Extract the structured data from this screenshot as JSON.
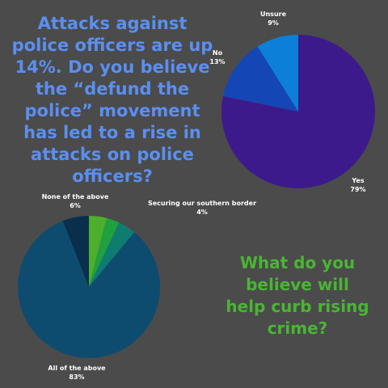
{
  "chart_data": [
    {
      "type": "pie",
      "title": "Attacks against police officers are up 14%. Do you believe the “defund the police” movement has led to a rise in attacks on police officers?",
      "slices": [
        {
          "label": "Yes",
          "value": 79,
          "pct_text": "79%",
          "color": "#3d1a8c"
        },
        {
          "label": "No",
          "value": 13,
          "pct_text": "13%",
          "color": "#1447b5"
        },
        {
          "label": "Unsure",
          "value": 9,
          "pct_text": "9%",
          "color": "#0c7fd8"
        }
      ]
    },
    {
      "type": "pie",
      "title": "What do you believe will help curb rising crime?",
      "slices": [
        {
          "label": "All of the above",
          "value": 83,
          "pct_text": "83%",
          "color": "#0e4c6f"
        },
        {
          "label": "Securing our southern border",
          "value": 4,
          "pct_text": "4%",
          "color": "#4cb02c"
        },
        {
          "label": "Unlabeled slice",
          "value": 3,
          "pct_text": "",
          "color": "#21a03f"
        },
        {
          "label": "Unlabeled slice",
          "value": 4,
          "pct_text": "",
          "color": "#0f7c72"
        },
        {
          "label": "None of the above",
          "value": 6,
          "pct_text": "6%",
          "color": "#0a2f4d"
        }
      ]
    }
  ],
  "colors": {
    "background": "#4b4b4b",
    "question1": "#5b8ff0",
    "question2": "#4ab534"
  }
}
